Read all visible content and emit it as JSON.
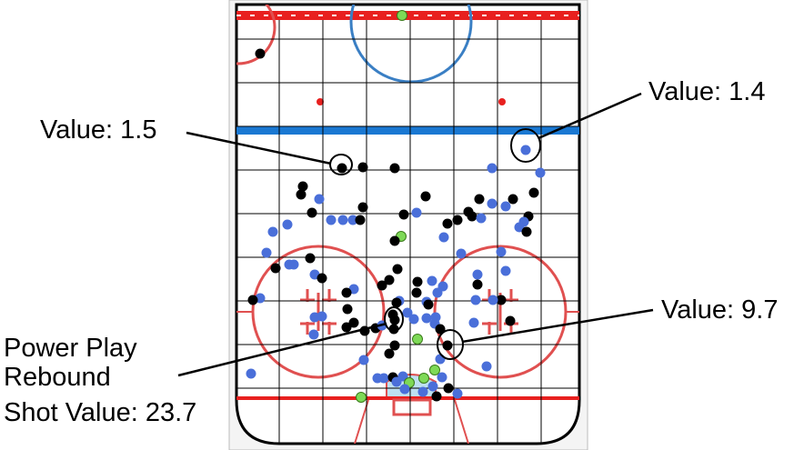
{
  "annotations": [
    {
      "id": "a1",
      "text": "Value: 1.5"
    },
    {
      "id": "a2",
      "text": "Value: 1.4"
    },
    {
      "id": "a3",
      "text": "Value: 9.7"
    },
    {
      "id": "a4",
      "lines": [
        "Power Play",
        "Rebound",
        "Shot Value: 23.7"
      ]
    }
  ],
  "colors": {
    "ice": "#ffffff",
    "grid": "#000000",
    "red_line": "#e8201f",
    "blue_line": "#1a78d2",
    "faceoff_circle": "#e05050",
    "crease": "#bde0f0",
    "shot_black": "#000000",
    "shot_blue": "#4a6fd9",
    "shot_green": "#7ed957"
  },
  "shot_colors": [
    "black",
    "blue",
    "green"
  ]
}
